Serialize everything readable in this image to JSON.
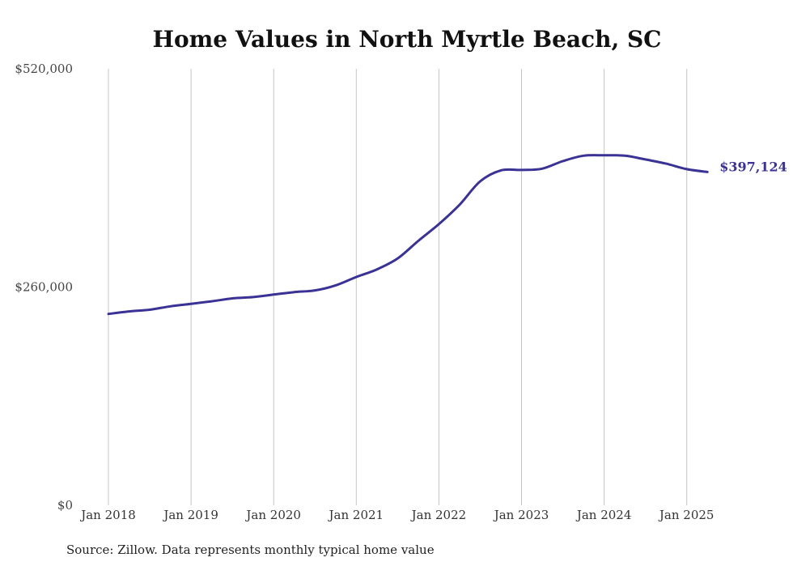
{
  "chart_data": {
    "type": "line",
    "title": "Home Values in North Myrtle Beach, SC",
    "source_note": "Source: Zillow. Data represents monthly typical home value",
    "xlabel": "",
    "ylabel": "",
    "ylim": [
      0,
      520000
    ],
    "y_ticks": [
      {
        "value": 0,
        "label": "$0"
      },
      {
        "value": 260000,
        "label": "$260,000"
      },
      {
        "value": 520000,
        "label": "$520,000"
      }
    ],
    "x_ticks": [
      {
        "value": "2018-01",
        "label": "Jan 2018"
      },
      {
        "value": "2019-01",
        "label": "Jan 2019"
      },
      {
        "value": "2020-01",
        "label": "Jan 2020"
      },
      {
        "value": "2021-01",
        "label": "Jan 2021"
      },
      {
        "value": "2022-01",
        "label": "Jan 2022"
      },
      {
        "value": "2023-01",
        "label": "Jan 2023"
      },
      {
        "value": "2024-01",
        "label": "Jan 2024"
      },
      {
        "value": "2025-01",
        "label": "Jan 2025"
      }
    ],
    "grid": {
      "vertical": true,
      "horizontal": false
    },
    "line_color": "#3a3294",
    "series": [
      {
        "end_label": "$397,124",
        "points": [
          {
            "x": "2018-01",
            "y": 228000
          },
          {
            "x": "2018-04",
            "y": 231000
          },
          {
            "x": "2018-07",
            "y": 233000
          },
          {
            "x": "2018-10",
            "y": 237000
          },
          {
            "x": "2019-01",
            "y": 240000
          },
          {
            "x": "2019-04",
            "y": 243000
          },
          {
            "x": "2019-07",
            "y": 246500
          },
          {
            "x": "2019-10",
            "y": 248000
          },
          {
            "x": "2020-01",
            "y": 251000
          },
          {
            "x": "2020-04",
            "y": 254000
          },
          {
            "x": "2020-07",
            "y": 256000
          },
          {
            "x": "2020-10",
            "y": 262000
          },
          {
            "x": "2021-01",
            "y": 272000
          },
          {
            "x": "2021-04",
            "y": 281000
          },
          {
            "x": "2021-07",
            "y": 294000
          },
          {
            "x": "2021-10",
            "y": 315000
          },
          {
            "x": "2022-01",
            "y": 335000
          },
          {
            "x": "2022-04",
            "y": 358000
          },
          {
            "x": "2022-07",
            "y": 386000
          },
          {
            "x": "2022-10",
            "y": 399000
          },
          {
            "x": "2023-01",
            "y": 399500
          },
          {
            "x": "2023-04",
            "y": 401000
          },
          {
            "x": "2023-07",
            "y": 410000
          },
          {
            "x": "2023-10",
            "y": 416500
          },
          {
            "x": "2024-01",
            "y": 417000
          },
          {
            "x": "2024-04",
            "y": 416500
          },
          {
            "x": "2024-07",
            "y": 412000
          },
          {
            "x": "2024-10",
            "y": 407000
          },
          {
            "x": "2025-01",
            "y": 400500
          },
          {
            "x": "2025-04",
            "y": 397124
          }
        ]
      }
    ]
  }
}
